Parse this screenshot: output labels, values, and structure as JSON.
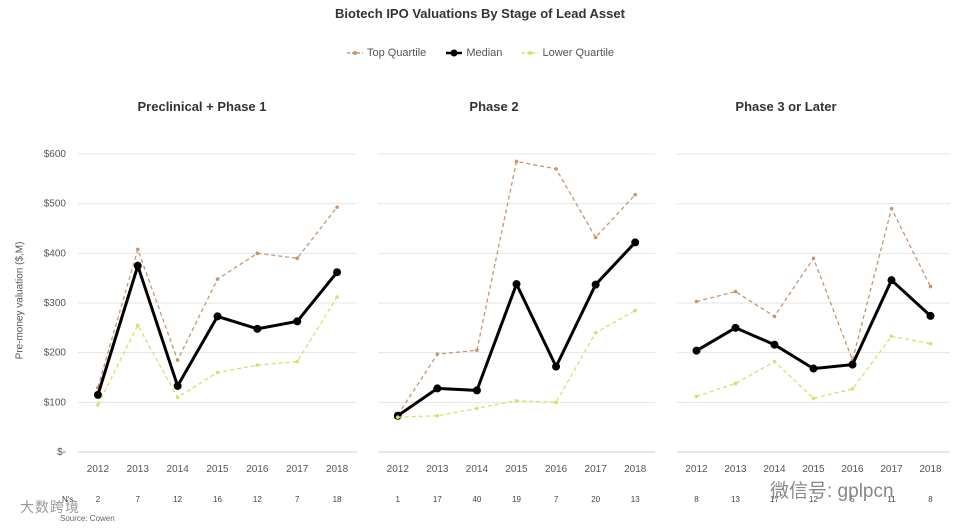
{
  "title": "Biotech IPO Valuations By Stage of Lead Asset",
  "legend": [
    {
      "label": "Top Quartile",
      "color": "#c8956e",
      "style": "dashed"
    },
    {
      "label": "Median",
      "color": "#000000",
      "style": "solid"
    },
    {
      "label": "Lower Quartile",
      "color": "#d9df6b",
      "style": "dashed"
    }
  ],
  "ylabel": "Pre-money valuation ($,M)",
  "y_ticks": [
    "$-",
    "$100",
    "$200",
    "$300",
    "$400",
    "$500",
    "$600"
  ],
  "n_label": "N's",
  "source_label": "Source: Cowen",
  "watermark_left": "大数跨境",
  "watermark_right": "微信号: gplpcn",
  "chart_data": [
    {
      "type": "line",
      "title": "Preclinical + Phase 1",
      "x": [
        "2012",
        "2013",
        "2014",
        "2015",
        "2016",
        "2017",
        "2018"
      ],
      "ylim": [
        0,
        600
      ],
      "series": [
        {
          "name": "Top Quartile",
          "values": [
            130,
            408,
            185,
            348,
            400,
            390,
            493
          ]
        },
        {
          "name": "Median",
          "values": [
            115,
            375,
            133,
            273,
            248,
            263,
            362
          ]
        },
        {
          "name": "Lower Quartile",
          "values": [
            95,
            255,
            110,
            160,
            175,
            182,
            312
          ]
        }
      ],
      "n": [
        "2",
        "7",
        "12",
        "16",
        "12",
        "7",
        "18"
      ]
    },
    {
      "type": "line",
      "title": "Phase 2",
      "x": [
        "2012",
        "2013",
        "2014",
        "2015",
        "2016",
        "2017",
        "2018"
      ],
      "ylim": [
        0,
        600
      ],
      "series": [
        {
          "name": "Top Quartile",
          "values": [
            75,
            197,
            205,
            585,
            570,
            432,
            518
          ]
        },
        {
          "name": "Median",
          "values": [
            73,
            128,
            124,
            338,
            172,
            337,
            422
          ]
        },
        {
          "name": "Lower Quartile",
          "values": [
            70,
            73,
            88,
            103,
            100,
            240,
            285
          ]
        }
      ],
      "n": [
        "1",
        "17",
        "40",
        "19",
        "7",
        "20",
        "13"
      ]
    },
    {
      "type": "line",
      "title": "Phase 3 or Later",
      "x": [
        "2012",
        "2013",
        "2014",
        "2015",
        "2016",
        "2017",
        "2018"
      ],
      "ylim": [
        0,
        600
      ],
      "series": [
        {
          "name": "Top Quartile",
          "values": [
            303,
            323,
            273,
            390,
            185,
            490,
            333
          ]
        },
        {
          "name": "Median",
          "values": [
            204,
            250,
            216,
            168,
            176,
            346,
            274
          ]
        },
        {
          "name": "Lower Quartile",
          "values": [
            112,
            138,
            182,
            108,
            127,
            233,
            218
          ]
        }
      ],
      "n": [
        "8",
        "13",
        "17",
        "12",
        "5",
        "11",
        "8"
      ]
    }
  ]
}
